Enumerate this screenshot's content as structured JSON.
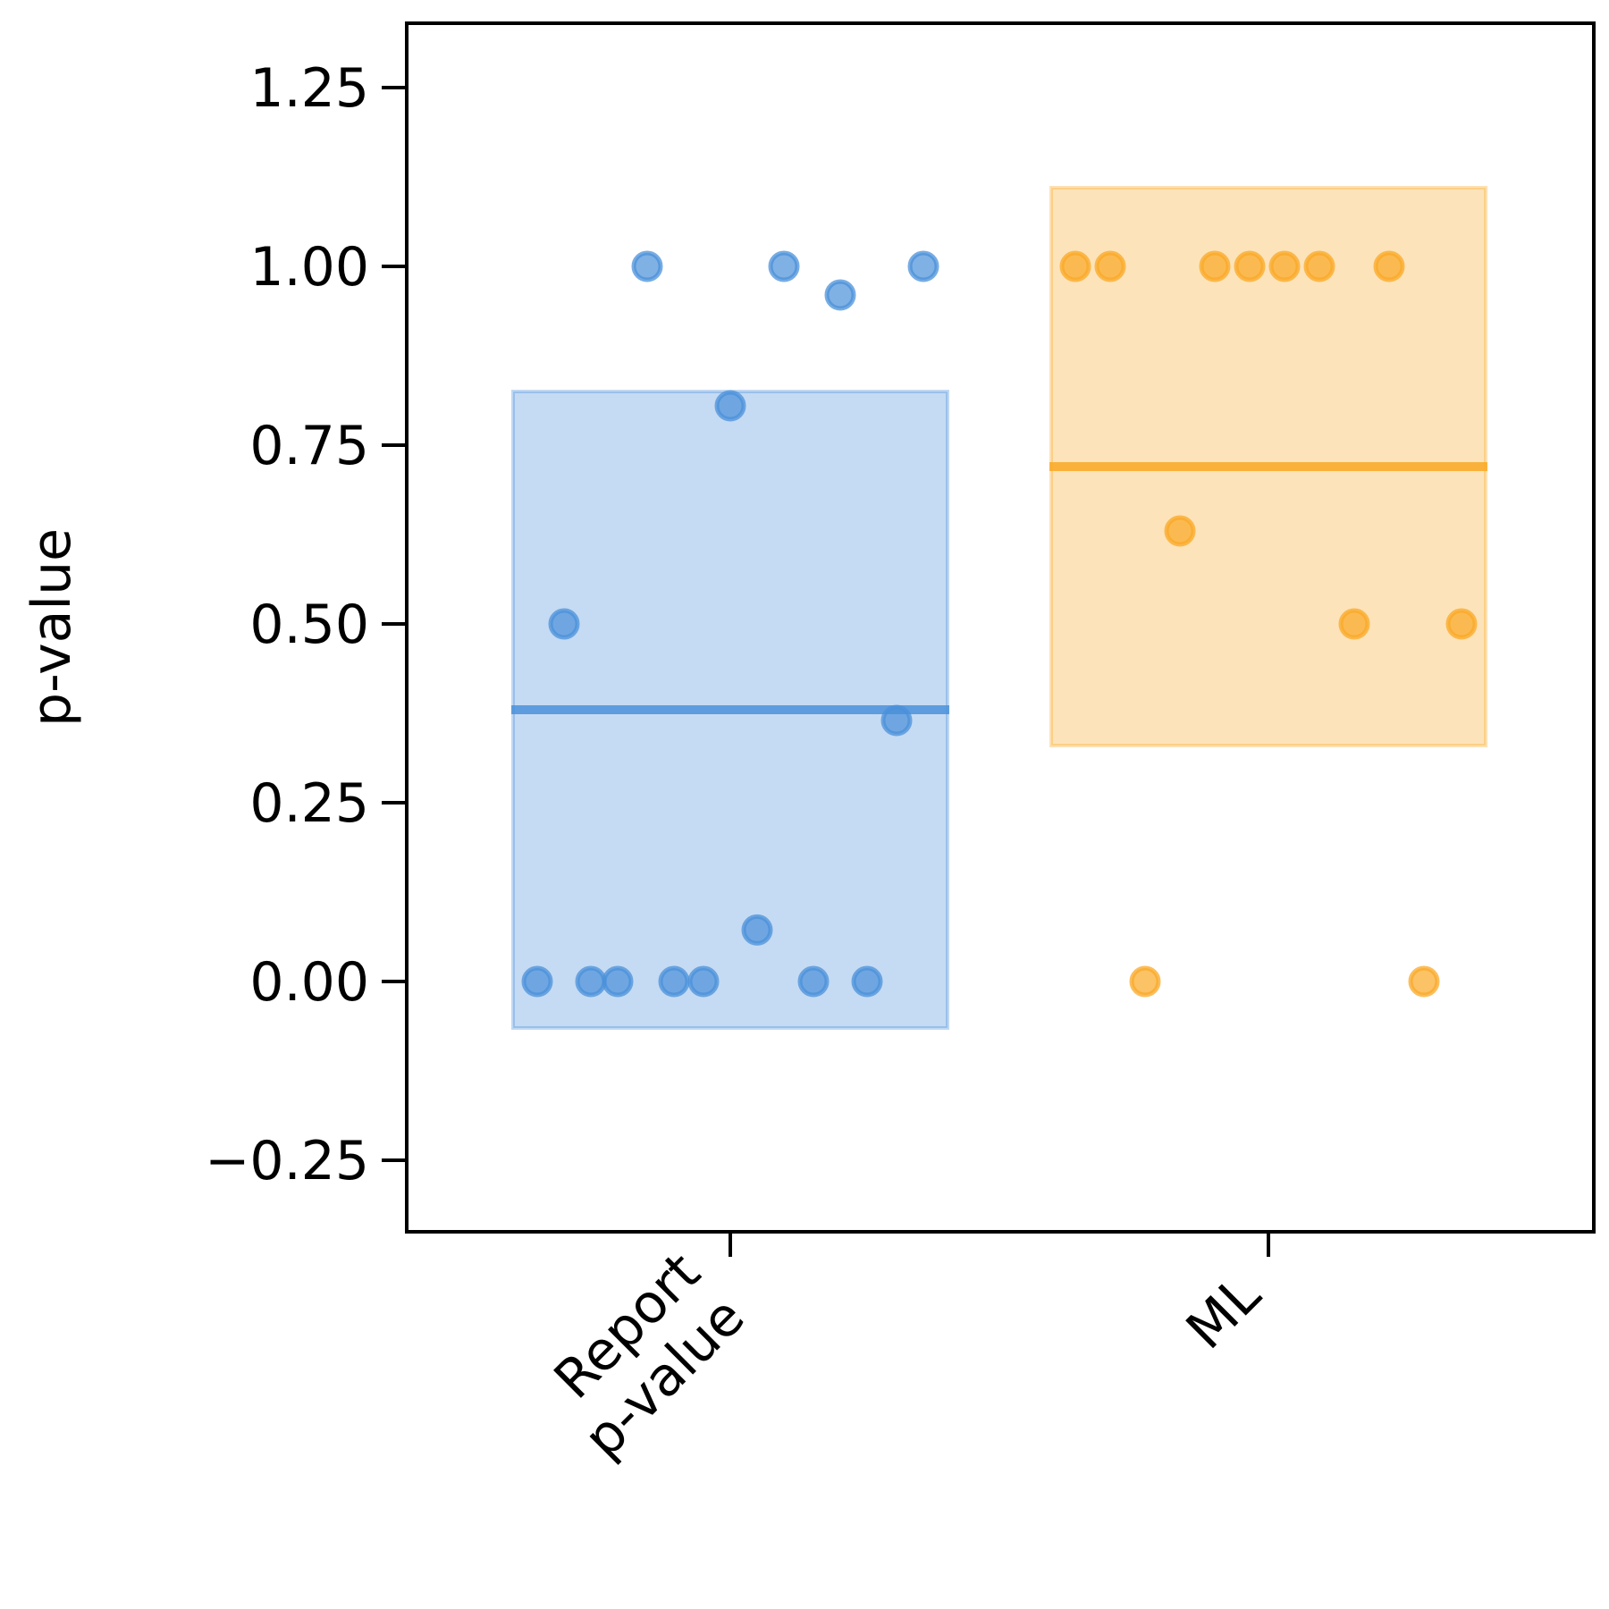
{
  "chart_data": {
    "type": "scatter",
    "title": "",
    "xlabel": "",
    "ylabel": "p-value",
    "ylim": [
      -0.35,
      1.34
    ],
    "yticks": [
      -0.25,
      0,
      0.25,
      0.5,
      0.75,
      1.0,
      1.25
    ],
    "ytick_labels": [
      "−0.25",
      "0.00",
      "0.25",
      "0.50",
      "0.75",
      "1.00",
      "1.25"
    ],
    "grid": false,
    "legend": "none",
    "categories": [
      {
        "label_lines": [
          "Report",
          "p-value"
        ],
        "color": "#4a90d9"
      },
      {
        "label_lines": [
          "ML"
        ],
        "color": "#f9a825"
      }
    ],
    "series": [
      {
        "category": 0,
        "mean": 0.38,
        "band": [
          -0.065,
          0.825
        ],
        "points": [
          {
            "x": -0.36,
            "y": 0.0
          },
          {
            "x": -0.31,
            "y": 0.5
          },
          {
            "x": -0.26,
            "y": 0.0
          },
          {
            "x": -0.21,
            "y": 0.0
          },
          {
            "x": -0.155,
            "y": 1.0
          },
          {
            "x": -0.105,
            "y": 0.0
          },
          {
            "x": -0.05,
            "y": 0.0
          },
          {
            "x": 0.0,
            "y": 0.805
          },
          {
            "x": 0.05,
            "y": 0.072
          },
          {
            "x": 0.1,
            "y": 1.0
          },
          {
            "x": 0.155,
            "y": 0.0
          },
          {
            "x": 0.205,
            "y": 0.96
          },
          {
            "x": 0.255,
            "y": 0.0
          },
          {
            "x": 0.31,
            "y": 0.365
          },
          {
            "x": 0.36,
            "y": 1.0
          }
        ]
      },
      {
        "category": 1,
        "mean": 0.72,
        "band": [
          0.33,
          1.11
        ],
        "points": [
          {
            "x": -0.36,
            "y": 1.0
          },
          {
            "x": -0.295,
            "y": 1.0
          },
          {
            "x": -0.23,
            "y": 0.0
          },
          {
            "x": -0.165,
            "y": 0.63
          },
          {
            "x": -0.1,
            "y": 1.0
          },
          {
            "x": -0.035,
            "y": 1.0
          },
          {
            "x": 0.03,
            "y": 1.0
          },
          {
            "x": 0.095,
            "y": 1.0
          },
          {
            "x": 0.16,
            "y": 0.5
          },
          {
            "x": 0.225,
            "y": 1.0
          },
          {
            "x": 0.29,
            "y": 0.0
          },
          {
            "x": 0.36,
            "y": 0.5
          }
        ]
      }
    ]
  }
}
